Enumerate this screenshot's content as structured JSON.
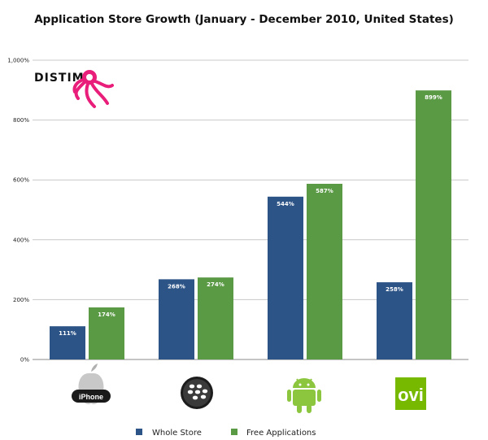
{
  "chart_data": {
    "type": "bar",
    "title": "Application Store Growth (January - December 2010, United States)",
    "categories": [
      "iPhone",
      "BlackBerry",
      "Android",
      "Ovi"
    ],
    "series": [
      {
        "name": "Whole Store",
        "values": [
          111,
          268,
          544,
          258
        ],
        "labels": [
          "111%",
          "268%",
          "544%",
          "258%"
        ],
        "color": "#2d5487"
      },
      {
        "name": "Free Applications",
        "values": [
          174,
          274,
          587,
          899
        ],
        "labels": [
          "174%",
          "274%",
          "587%",
          "899%"
        ],
        "color": "#5a9a45"
      }
    ],
    "yticks": [
      0,
      200,
      400,
      600,
      800,
      1000
    ],
    "ytick_labels": [
      "0%",
      "200%",
      "400%",
      "600%",
      "800%",
      "1,000%"
    ],
    "ylim": [
      0,
      1000
    ],
    "xlabel": "",
    "ylabel": "",
    "grid": true,
    "legend_position": "bottom"
  },
  "logo": {
    "text": "DISTIMO",
    "color": "#e91e7a"
  },
  "category_logos": {
    "iphone_label": "iPhone",
    "ovi_label": "ovi"
  }
}
